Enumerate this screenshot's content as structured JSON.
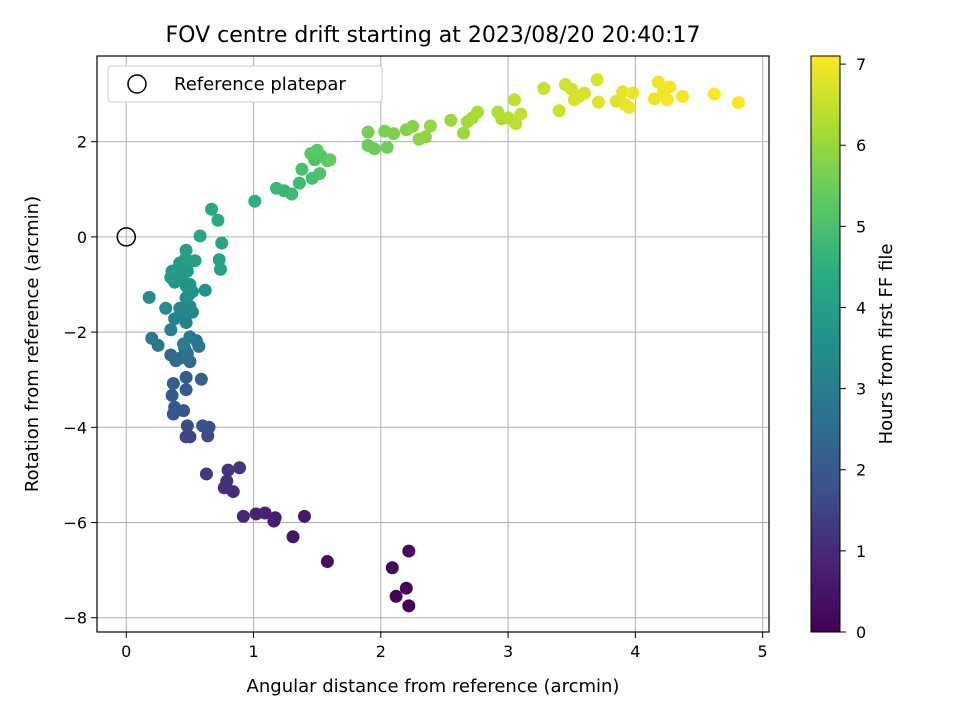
{
  "chart_data": {
    "type": "scatter",
    "title": "FOV centre drift starting at 2023/08/20 20:40:17",
    "xlabel": "Angular distance from reference (arcmin)",
    "ylabel": "Rotation from reference (arcmin)",
    "xlim": [
      -0.23,
      5.05
    ],
    "ylim": [
      -8.3,
      3.8
    ],
    "xticks": [
      0,
      1,
      2,
      3,
      4,
      5
    ],
    "yticks": [
      -8,
      -6,
      -4,
      -2,
      0,
      2
    ],
    "grid": true,
    "legend": {
      "placement": "top-left",
      "entries": [
        "Reference platepar"
      ]
    },
    "reference_point": {
      "x": 0,
      "y": 0
    },
    "colorbar": {
      "label": "Hours from first FF file",
      "colormap": "viridis",
      "min": 0,
      "max": 7.1,
      "ticks": [
        0,
        1,
        2,
        3,
        4,
        5,
        6,
        7
      ]
    },
    "points": [
      [
        2.22,
        -7.75,
        0.05
      ],
      [
        2.12,
        -7.55,
        0.1
      ],
      [
        2.2,
        -7.38,
        0.15
      ],
      [
        2.09,
        -6.95,
        0.2
      ],
      [
        2.22,
        -6.6,
        0.25
      ],
      [
        1.58,
        -6.82,
        0.35
      ],
      [
        1.31,
        -6.3,
        0.5
      ],
      [
        1.4,
        -5.87,
        0.6
      ],
      [
        1.16,
        -5.97,
        0.7
      ],
      [
        1.17,
        -5.9,
        0.75
      ],
      [
        1.09,
        -5.8,
        0.8
      ],
      [
        1.02,
        -5.82,
        0.85
      ],
      [
        0.92,
        -5.87,
        0.9
      ],
      [
        0.84,
        -5.35,
        1.05
      ],
      [
        0.77,
        -5.27,
        1.1
      ],
      [
        0.79,
        -5.13,
        1.15
      ],
      [
        0.8,
        -4.9,
        1.2
      ],
      [
        0.89,
        -4.85,
        1.25
      ],
      [
        0.63,
        -4.98,
        1.3
      ],
      [
        0.47,
        -4.2,
        1.5
      ],
      [
        0.5,
        -4.2,
        1.55
      ],
      [
        0.48,
        -3.97,
        1.6
      ],
      [
        0.64,
        -4.18,
        1.65
      ],
      [
        0.65,
        -4.0,
        1.7
      ],
      [
        0.6,
        -3.97,
        1.75
      ],
      [
        0.37,
        -3.72,
        1.85
      ],
      [
        0.38,
        -3.58,
        1.9
      ],
      [
        0.45,
        -3.65,
        1.95
      ],
      [
        0.36,
        -3.33,
        2.0
      ],
      [
        0.47,
        -3.21,
        2.05
      ],
      [
        0.37,
        -3.08,
        2.1
      ],
      [
        0.47,
        -2.95,
        2.15
      ],
      [
        0.59,
        -2.99,
        2.2
      ],
      [
        0.39,
        -2.6,
        2.4
      ],
      [
        0.35,
        -2.48,
        2.45
      ],
      [
        0.5,
        -2.62,
        2.5
      ],
      [
        0.42,
        -2.55,
        2.55
      ],
      [
        0.46,
        -2.35,
        2.6
      ],
      [
        0.48,
        -2.45,
        2.65
      ],
      [
        0.55,
        -2.18,
        2.7
      ],
      [
        0.57,
        -2.3,
        2.75
      ],
      [
        0.2,
        -2.13,
        2.85
      ],
      [
        0.25,
        -2.28,
        2.9
      ],
      [
        0.45,
        -2.25,
        2.95
      ],
      [
        0.5,
        -2.1,
        3.0
      ],
      [
        0.35,
        -1.95,
        3.05
      ],
      [
        0.47,
        -1.8,
        3.1
      ],
      [
        0.38,
        -1.72,
        3.15
      ],
      [
        0.43,
        -1.6,
        3.2
      ],
      [
        0.52,
        -1.58,
        3.25
      ],
      [
        0.42,
        -1.5,
        3.3
      ],
      [
        0.5,
        -1.46,
        3.35
      ],
      [
        0.31,
        -1.5,
        3.4
      ],
      [
        0.18,
        -1.27,
        3.45
      ],
      [
        0.47,
        -1.28,
        3.5
      ],
      [
        0.49,
        -1.22,
        3.55
      ],
      [
        0.52,
        -1.15,
        3.6
      ],
      [
        0.62,
        -1.12,
        3.62
      ],
      [
        0.47,
        -1.03,
        3.65
      ],
      [
        0.5,
        -1.0,
        3.7
      ],
      [
        0.38,
        -0.95,
        3.72
      ],
      [
        0.4,
        -0.88,
        3.75
      ],
      [
        0.35,
        -0.85,
        3.78
      ],
      [
        0.45,
        -0.78,
        3.8
      ],
      [
        0.48,
        -0.72,
        3.82
      ],
      [
        0.4,
        -0.68,
        3.85
      ],
      [
        0.36,
        -0.72,
        3.88
      ],
      [
        0.42,
        -0.55,
        3.9
      ],
      [
        0.5,
        -0.52,
        3.92
      ],
      [
        0.54,
        -0.5,
        3.95
      ],
      [
        0.46,
        -0.48,
        3.97
      ],
      [
        0.47,
        -0.28,
        4.0
      ],
      [
        0.74,
        -0.68,
        4.05
      ],
      [
        0.73,
        -0.48,
        4.1
      ],
      [
        0.75,
        -0.13,
        4.15
      ],
      [
        0.58,
        0.02,
        4.2
      ],
      [
        0.72,
        0.35,
        4.3
      ],
      [
        0.67,
        0.58,
        4.35
      ],
      [
        1.01,
        0.75,
        4.5
      ],
      [
        1.24,
        0.97,
        4.7
      ],
      [
        1.18,
        1.02,
        4.75
      ],
      [
        1.3,
        0.9,
        4.8
      ],
      [
        1.36,
        1.13,
        4.85
      ],
      [
        1.38,
        1.42,
        4.95
      ],
      [
        1.46,
        1.23,
        5.0
      ],
      [
        1.52,
        1.33,
        5.05
      ],
      [
        1.48,
        1.62,
        5.1
      ],
      [
        1.53,
        1.7,
        5.15
      ],
      [
        1.45,
        1.75,
        5.2
      ],
      [
        1.5,
        1.82,
        5.25
      ],
      [
        1.58,
        1.6,
        5.3
      ],
      [
        1.6,
        1.62,
        5.35
      ],
      [
        1.9,
        1.92,
        5.45
      ],
      [
        1.95,
        1.85,
        5.5
      ],
      [
        2.05,
        1.88,
        5.55
      ],
      [
        1.9,
        2.2,
        5.6
      ],
      [
        2.03,
        2.22,
        5.65
      ],
      [
        2.1,
        2.17,
        5.7
      ],
      [
        2.2,
        2.25,
        5.75
      ],
      [
        2.25,
        2.32,
        5.8
      ],
      [
        2.3,
        2.05,
        5.85
      ],
      [
        2.35,
        2.1,
        5.9
      ],
      [
        2.39,
        2.33,
        5.95
      ],
      [
        2.55,
        2.45,
        6.0
      ],
      [
        2.65,
        2.18,
        6.05
      ],
      [
        2.68,
        2.42,
        6.1
      ],
      [
        2.72,
        2.5,
        6.15
      ],
      [
        2.76,
        2.62,
        6.2
      ],
      [
        2.95,
        2.48,
        6.25
      ],
      [
        2.92,
        2.62,
        6.3
      ],
      [
        3.0,
        2.5,
        6.35
      ],
      [
        3.06,
        2.38,
        6.4
      ],
      [
        3.05,
        2.88,
        6.45
      ],
      [
        3.1,
        2.58,
        6.5
      ],
      [
        3.28,
        3.12,
        6.55
      ],
      [
        3.4,
        2.65,
        6.6
      ],
      [
        3.45,
        3.2,
        6.62
      ],
      [
        3.5,
        3.1,
        6.65
      ],
      [
        3.52,
        2.88,
        6.68
      ],
      [
        3.56,
        2.95,
        6.7
      ],
      [
        3.6,
        3.02,
        6.72
      ],
      [
        3.7,
        3.3,
        6.75
      ],
      [
        3.71,
        2.83,
        6.78
      ],
      [
        3.85,
        2.85,
        6.8
      ],
      [
        3.9,
        3.05,
        6.82
      ],
      [
        3.92,
        2.78,
        6.85
      ],
      [
        3.95,
        2.72,
        6.88
      ],
      [
        3.98,
        3.02,
        6.9
      ],
      [
        4.15,
        2.9,
        6.92
      ],
      [
        4.18,
        3.25,
        6.95
      ],
      [
        4.22,
        3.05,
        6.97
      ],
      [
        4.27,
        3.15,
        7.0
      ],
      [
        4.25,
        2.88,
        7.02
      ],
      [
        4.37,
        2.95,
        7.04
      ],
      [
        4.62,
        3.0,
        7.06
      ],
      [
        4.81,
        2.82,
        7.1
      ]
    ]
  }
}
